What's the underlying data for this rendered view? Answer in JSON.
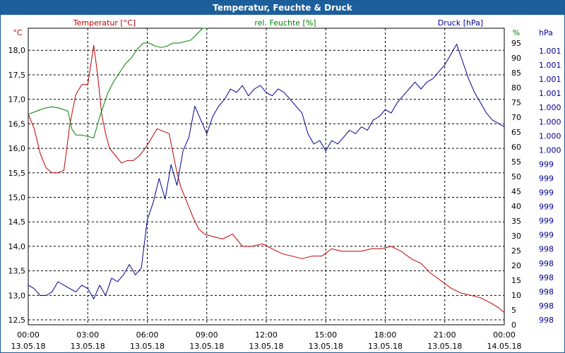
{
  "window": {
    "title": "Temperatur, Feuchte & Druck"
  },
  "chart_data": {
    "type": "line",
    "title": "Temperatur, Feuchte & Druck",
    "grid": true,
    "x_ticks": [
      {
        "hour": 0,
        "time": "00:00",
        "date": "13.05.18"
      },
      {
        "hour": 3,
        "time": "03:00",
        "date": "13.05.18"
      },
      {
        "hour": 6,
        "time": "06:00",
        "date": "13.05.18"
      },
      {
        "hour": 9,
        "time": "09:00",
        "date": "13.05.18"
      },
      {
        "hour": 12,
        "time": "12:00",
        "date": "13.05.18"
      },
      {
        "hour": 15,
        "time": "15:00",
        "date": "13.05.18"
      },
      {
        "hour": 18,
        "time": "18:00",
        "date": "13.05.18"
      },
      {
        "hour": 21,
        "time": "21:00",
        "date": "13.05.18"
      },
      {
        "hour": 24,
        "time": "00:00",
        "date": "14.05.18"
      }
    ],
    "xlim": [
      0,
      24
    ],
    "axes": {
      "temperature": {
        "unit": "°C",
        "ylim": [
          12.4,
          18.45
        ],
        "ticks": [
          12.5,
          13.0,
          13.5,
          14.0,
          14.5,
          15.0,
          15.5,
          16.0,
          16.5,
          17.0,
          17.5,
          18.0
        ],
        "tick_labels": [
          "12,5",
          "13,0",
          "13,5",
          "14,0",
          "14,5",
          "15,0",
          "15,5",
          "16,0",
          "16,5",
          "17,0",
          "17,5",
          "18,0"
        ]
      },
      "humidity": {
        "unit": "%",
        "ylim": [
          0,
          100
        ],
        "ticks": [
          0,
          5,
          10,
          15,
          20,
          25,
          30,
          35,
          40,
          45,
          50,
          55,
          60,
          65,
          70,
          75,
          80,
          85,
          90,
          95
        ],
        "tick_labels": [
          "0",
          "5",
          "10",
          "15",
          "20",
          "25",
          "30",
          "35",
          "40",
          "45",
          "50",
          "55",
          "60",
          "65",
          "70",
          "75",
          "80",
          "85",
          "90",
          "95"
        ]
      },
      "pressure": {
        "unit": "hPa",
        "tick_labels": [
          "998",
          "998",
          "998",
          "998",
          "998",
          "998",
          "999",
          "999",
          "999",
          "999",
          "999",
          "999",
          "1.000",
          "1.000",
          "1.000",
          "1.000",
          "1.001",
          "1.001",
          "1.001",
          "1.001"
        ]
      }
    },
    "series": [
      {
        "name": "Temperatur [°C]",
        "axis": "temperature",
        "color": "#c00000",
        "x": [
          0,
          0.3,
          0.6,
          0.9,
          1.2,
          1.5,
          1.8,
          2.1,
          2.4,
          2.7,
          3.0,
          3.3,
          3.5,
          3.7,
          3.9,
          4.1,
          4.4,
          4.7,
          5.0,
          5.3,
          5.6,
          5.9,
          6.2,
          6.5,
          6.8,
          7.1,
          7.3,
          7.5,
          7.7,
          8.0,
          8.3,
          8.6,
          8.9,
          9.3,
          9.8,
          10.3,
          10.8,
          11.3,
          11.8,
          12.3,
          12.8,
          13.3,
          13.8,
          14.3,
          14.8,
          15.3,
          15.8,
          16.3,
          16.8,
          17.3,
          17.8,
          18.3,
          18.8,
          19.3,
          19.8,
          20.3,
          20.8,
          21.3,
          21.8,
          22.3,
          22.8,
          23.3,
          23.7,
          24.0
        ],
        "values": [
          16.7,
          16.4,
          15.9,
          15.6,
          15.5,
          15.5,
          15.55,
          16.5,
          17.1,
          17.3,
          17.3,
          18.1,
          17.5,
          16.7,
          16.3,
          16.0,
          15.85,
          15.7,
          15.75,
          15.75,
          15.85,
          16.0,
          16.2,
          16.4,
          16.35,
          16.3,
          15.9,
          15.5,
          15.2,
          14.9,
          14.6,
          14.35,
          14.25,
          14.2,
          14.15,
          14.25,
          14.0,
          14.0,
          14.05,
          13.95,
          13.85,
          13.8,
          13.75,
          13.8,
          13.8,
          13.95,
          13.9,
          13.9,
          13.9,
          13.95,
          13.95,
          14.0,
          13.9,
          13.75,
          13.65,
          13.45,
          13.3,
          13.15,
          13.05,
          13.0,
          12.95,
          12.85,
          12.75,
          12.65
        ]
      },
      {
        "name": "rel. Feuchte [%]",
        "axis": "humidity",
        "color": "#008000",
        "x": [
          0,
          0.4,
          0.8,
          1.2,
          1.6,
          2.0,
          2.2,
          2.4,
          2.7,
          3.0,
          3.3,
          3.6,
          3.8,
          4.0,
          4.3,
          4.6,
          4.9,
          5.2,
          5.5,
          5.8,
          6.1,
          6.4,
          6.7,
          7.0,
          7.3,
          7.6,
          7.9,
          8.2,
          8.5,
          8.8,
          9.0
        ],
        "values": [
          71,
          72,
          73,
          73.5,
          73,
          72,
          66,
          64,
          64,
          63.5,
          63,
          70,
          74,
          78,
          82,
          85,
          88,
          90,
          93,
          95,
          95,
          94,
          93.5,
          94,
          95,
          95,
          95.5,
          96,
          98,
          100,
          100
        ]
      },
      {
        "name": "Druck [hPa]",
        "axis": "pressure",
        "color": "#000090",
        "x": [
          0,
          0.3,
          0.6,
          0.9,
          1.2,
          1.5,
          1.8,
          2.1,
          2.4,
          2.7,
          3.0,
          3.3,
          3.6,
          3.9,
          4.2,
          4.5,
          4.8,
          5.1,
          5.4,
          5.7,
          6.0,
          6.3,
          6.6,
          6.9,
          7.2,
          7.5,
          7.8,
          8.1,
          8.4,
          8.7,
          9.0,
          9.3,
          9.6,
          9.9,
          10.2,
          10.5,
          10.8,
          11.1,
          11.4,
          11.7,
          12.0,
          12.3,
          12.6,
          12.9,
          13.2,
          13.5,
          13.8,
          14.1,
          14.4,
          14.7,
          15.0,
          15.3,
          15.6,
          15.9,
          16.2,
          16.5,
          16.8,
          17.1,
          17.4,
          17.7,
          18.0,
          18.3,
          18.6,
          18.9,
          19.2,
          19.5,
          19.8,
          20.1,
          20.4,
          20.7,
          21.0,
          21.3,
          21.6,
          21.9,
          22.2,
          22.5,
          22.8,
          23.1,
          23.4,
          23.7,
          24.0
        ],
        "values": [
          997.35,
          997.3,
          997.2,
          997.2,
          997.25,
          997.4,
          997.35,
          997.3,
          997.25,
          997.35,
          997.3,
          997.15,
          997.35,
          997.2,
          997.45,
          997.4,
          997.5,
          997.65,
          997.5,
          997.6,
          998.3,
          998.55,
          998.9,
          998.6,
          999.1,
          998.8,
          999.3,
          999.5,
          999.95,
          999.75,
          999.55,
          999.8,
          999.95,
          1000.05,
          1000.2,
          1000.15,
          1000.25,
          1000.1,
          1000.2,
          1000.25,
          1000.15,
          1000.1,
          1000.2,
          1000.15,
          1000.05,
          999.95,
          999.85,
          999.55,
          999.4,
          999.45,
          999.3,
          999.45,
          999.4,
          999.5,
          999.6,
          999.55,
          999.65,
          999.6,
          999.75,
          999.8,
          999.9,
          999.85,
          1000.0,
          1000.1,
          1000.2,
          1000.3,
          1000.2,
          1000.3,
          1000.35,
          1000.45,
          1000.55,
          1000.7,
          1000.85,
          1000.6,
          1000.35,
          1000.15,
          1000.0,
          999.85,
          999.75,
          999.7,
          999.65
        ]
      }
    ]
  }
}
